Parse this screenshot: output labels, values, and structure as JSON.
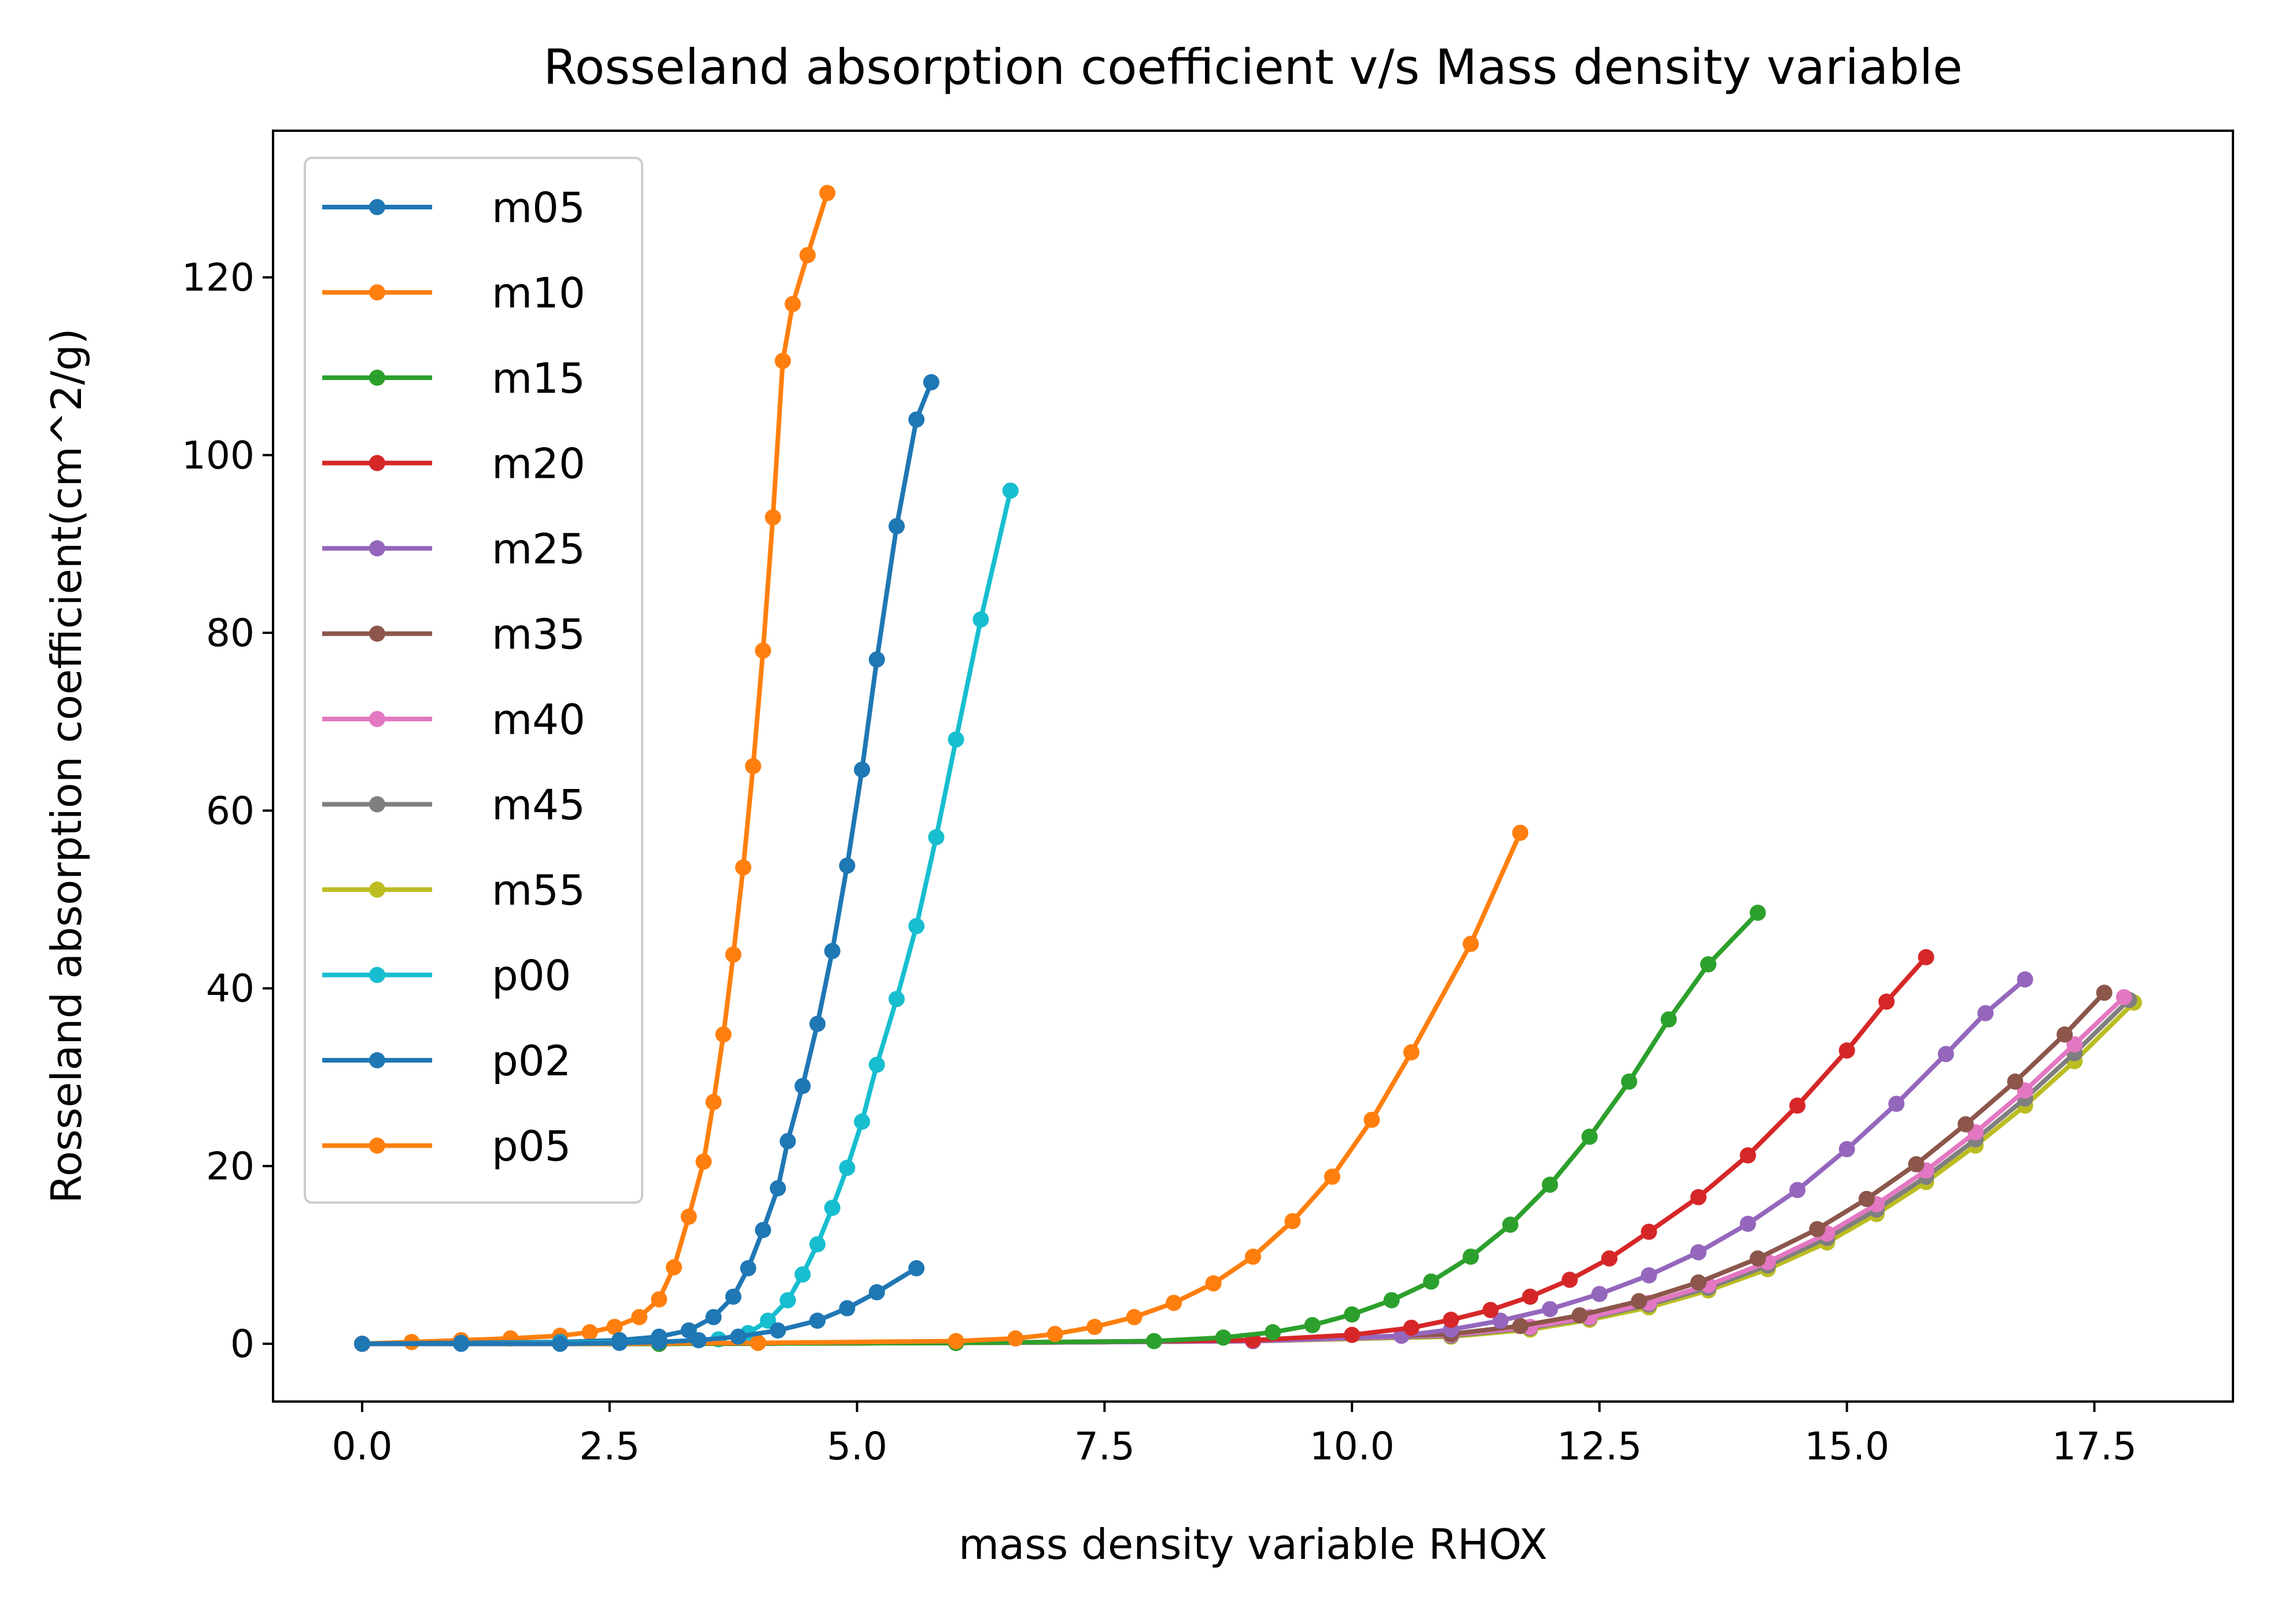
{
  "chart_data": {
    "type": "line",
    "title": "Rosseland absorption coefficient v/s Mass density variable",
    "xlabel": "mass density variable RHOX",
    "ylabel": "Rosseland absorption coefficient(cm^2/g)",
    "xlim": [
      -0.9,
      18.9
    ],
    "ylim": [
      -6.5,
      136.5
    ],
    "xticks": [
      0,
      2.5,
      5,
      7.5,
      10,
      12.5,
      15,
      17.5
    ],
    "xtick_labels": [
      "0.0",
      "2.5",
      "5.0",
      "7.5",
      "10.0",
      "12.5",
      "15.0",
      "17.5"
    ],
    "yticks": [
      0,
      20,
      40,
      60,
      80,
      100,
      120
    ],
    "ytick_labels": [
      "0",
      "20",
      "40",
      "60",
      "80",
      "100",
      "120"
    ],
    "grid": false,
    "legend_position": "upper-left",
    "series": [
      {
        "name": "m05",
        "color": "#1f77b4",
        "x": [
          0.0,
          1.0,
          2.0,
          2.6,
          3.0,
          3.4,
          3.8,
          4.2,
          4.6,
          4.9,
          5.2,
          5.6
        ],
        "y": [
          0.0,
          0.0,
          0.0,
          0.1,
          0.2,
          0.4,
          0.8,
          1.5,
          2.6,
          4.0,
          5.8,
          8.5
        ]
      },
      {
        "name": "m10",
        "color": "#ff7f0e",
        "x": [
          0.0,
          2.0,
          4.0,
          6.0,
          6.6,
          7.0,
          7.4,
          7.8,
          8.2,
          8.6,
          9.0,
          9.4,
          9.8,
          10.2,
          10.6,
          11.2,
          11.7
        ],
        "y": [
          0.0,
          0.0,
          0.1,
          0.3,
          0.6,
          1.1,
          1.9,
          3.0,
          4.6,
          6.8,
          9.8,
          13.8,
          18.8,
          25.2,
          32.8,
          45.0,
          57.5
        ]
      },
      {
        "name": "m15",
        "color": "#2ca02c",
        "x": [
          0.0,
          3.0,
          6.0,
          8.0,
          8.7,
          9.2,
          9.6,
          10.0,
          10.4,
          10.8,
          11.2,
          11.6,
          12.0,
          12.4,
          12.8,
          13.2,
          13.6,
          14.1
        ],
        "y": [
          0.0,
          0.0,
          0.1,
          0.3,
          0.7,
          1.3,
          2.1,
          3.3,
          4.9,
          7.0,
          9.8,
          13.4,
          17.9,
          23.3,
          29.5,
          36.5,
          42.7,
          48.5
        ]
      },
      {
        "name": "m20",
        "color": "#d62728",
        "x": [
          0.0,
          3.0,
          6.0,
          9.0,
          10.0,
          10.6,
          11.0,
          11.4,
          11.8,
          12.2,
          12.6,
          13.0,
          13.5,
          14.0,
          14.5,
          15.0,
          15.4,
          15.8
        ],
        "y": [
          0.0,
          0.0,
          0.1,
          0.4,
          1.0,
          1.8,
          2.7,
          3.8,
          5.3,
          7.2,
          9.6,
          12.6,
          16.5,
          21.2,
          26.8,
          33.0,
          38.5,
          43.5
        ]
      },
      {
        "name": "m25",
        "color": "#9467bd",
        "x": [
          0.0,
          3.0,
          6.0,
          9.0,
          10.5,
          11.0,
          11.5,
          12.0,
          12.5,
          13.0,
          13.5,
          14.0,
          14.5,
          15.0,
          15.5,
          16.0,
          16.4,
          16.8
        ],
        "y": [
          0.0,
          0.0,
          0.1,
          0.3,
          0.9,
          1.6,
          2.6,
          3.9,
          5.6,
          7.7,
          10.3,
          13.5,
          17.3,
          21.9,
          27.0,
          32.6,
          37.2,
          41.0
        ]
      },
      {
        "name": "m35",
        "color": "#8c564b",
        "x": [
          0.0,
          3.0,
          6.0,
          9.0,
          11.0,
          11.7,
          12.3,
          12.9,
          13.5,
          14.1,
          14.7,
          15.2,
          15.7,
          16.2,
          16.7,
          17.2,
          17.6
        ],
        "y": [
          0.0,
          0.0,
          0.1,
          0.3,
          1.1,
          2.0,
          3.2,
          4.8,
          6.9,
          9.6,
          12.9,
          16.3,
          20.2,
          24.7,
          29.5,
          34.8,
          39.5
        ]
      },
      {
        "name": "m40",
        "color": "#e377c2",
        "x": [
          0.0,
          3.0,
          6.0,
          9.0,
          11.0,
          11.8,
          12.4,
          13.0,
          13.6,
          14.2,
          14.8,
          15.3,
          15.8,
          16.3,
          16.8,
          17.3,
          17.8
        ],
        "y": [
          0.0,
          0.0,
          0.1,
          0.3,
          1.0,
          1.9,
          3.0,
          4.6,
          6.6,
          9.2,
          12.4,
          15.7,
          19.5,
          23.8,
          28.5,
          33.7,
          39.0
        ]
      },
      {
        "name": "m45",
        "color": "#7f7f7f",
        "x": [
          0.0,
          3.0,
          6.0,
          9.0,
          11.0,
          11.8,
          12.4,
          13.0,
          13.6,
          14.2,
          14.8,
          15.3,
          15.8,
          16.3,
          16.8,
          17.3,
          17.85
        ],
        "y": [
          0.0,
          0.0,
          0.1,
          0.3,
          0.9,
          1.8,
          2.9,
          4.4,
          6.3,
          8.8,
          11.9,
          15.1,
          18.8,
          23.0,
          27.6,
          32.7,
          38.7
        ]
      },
      {
        "name": "m55",
        "color": "#bcbd22",
        "x": [
          0.0,
          3.0,
          6.0,
          9.0,
          11.0,
          11.8,
          12.4,
          13.0,
          13.6,
          14.2,
          14.8,
          15.3,
          15.8,
          16.3,
          16.8,
          17.3,
          17.9
        ],
        "y": [
          0.0,
          0.0,
          0.1,
          0.3,
          0.8,
          1.6,
          2.7,
          4.1,
          6.0,
          8.4,
          11.4,
          14.6,
          18.2,
          22.3,
          26.8,
          31.8,
          38.4
        ]
      },
      {
        "name": "p00",
        "color": "#17becf",
        "x": [
          0.0,
          1.0,
          2.0,
          3.0,
          3.6,
          3.9,
          4.1,
          4.3,
          4.45,
          4.6,
          4.75,
          4.9,
          5.05,
          5.2,
          5.4,
          5.6,
          5.8,
          6.0,
          6.25,
          6.55
        ],
        "y": [
          0.0,
          0.0,
          0.1,
          0.2,
          0.5,
          1.2,
          2.6,
          4.9,
          7.8,
          11.2,
          15.3,
          19.8,
          25.0,
          31.4,
          38.8,
          47.0,
          57.0,
          68.0,
          81.5,
          96.0
        ]
      },
      {
        "name": "p02",
        "color": "#1f77b4",
        "x": [
          0.0,
          1.0,
          2.0,
          2.6,
          3.0,
          3.3,
          3.55,
          3.75,
          3.9,
          4.05,
          4.2,
          4.3,
          4.45,
          4.6,
          4.75,
          4.9,
          5.05,
          5.2,
          5.4,
          5.6,
          5.75
        ],
        "y": [
          0.0,
          0.1,
          0.2,
          0.4,
          0.8,
          1.5,
          3.0,
          5.3,
          8.5,
          12.8,
          17.5,
          22.8,
          29.0,
          36.0,
          44.2,
          53.8,
          64.6,
          77.0,
          92.0,
          104.0,
          108.2
        ]
      },
      {
        "name": "p05",
        "color": "#ff7f0e",
        "x": [
          0.0,
          0.5,
          1.0,
          1.5,
          2.0,
          2.3,
          2.55,
          2.8,
          3.0,
          3.15,
          3.3,
          3.45,
          3.55,
          3.65,
          3.75,
          3.85,
          3.95,
          4.05,
          4.15,
          4.25,
          4.35,
          4.5,
          4.7
        ],
        "y": [
          0.0,
          0.2,
          0.4,
          0.6,
          0.9,
          1.3,
          1.9,
          3.0,
          5.0,
          8.6,
          14.3,
          20.5,
          27.2,
          34.8,
          43.8,
          53.6,
          65.0,
          78.0,
          93.0,
          110.6,
          117.0,
          122.5,
          129.5
        ]
      }
    ]
  }
}
